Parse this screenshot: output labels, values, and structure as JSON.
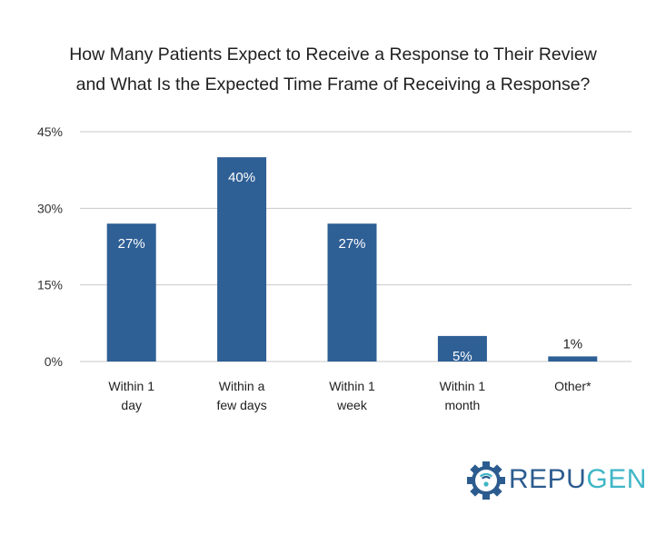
{
  "chart_data": {
    "type": "bar",
    "title_lines": [
      "How Many Patients Expect to Receive a Response to Their Review",
      "and What Is the Expected Time Frame of Receiving a Response?"
    ],
    "categories": [
      [
        "Within 1",
        "day"
      ],
      [
        "Within a",
        "few days"
      ],
      [
        "Within 1",
        "week"
      ],
      [
        "Within 1",
        "month"
      ],
      [
        "Other*"
      ]
    ],
    "values": [
      27,
      40,
      27,
      5,
      1
    ],
    "data_labels": [
      "27%",
      "40%",
      "27%",
      "5%",
      "1%"
    ],
    "yticks": [
      0,
      15,
      30,
      45
    ],
    "ytick_labels": [
      "0%",
      "15%",
      "30%",
      "45%"
    ],
    "ylim": [
      0,
      45
    ],
    "grid": true,
    "bar_color": "#2e5f95",
    "label_inside_color": "#ffffff",
    "label_outside_color": "#222222"
  },
  "logo": {
    "text_part1": "REPU",
    "text_part2": "GEN",
    "color_dark": "#2c5c8f",
    "color_light": "#3fb6c6",
    "icon": "repugen-gear-icon"
  }
}
